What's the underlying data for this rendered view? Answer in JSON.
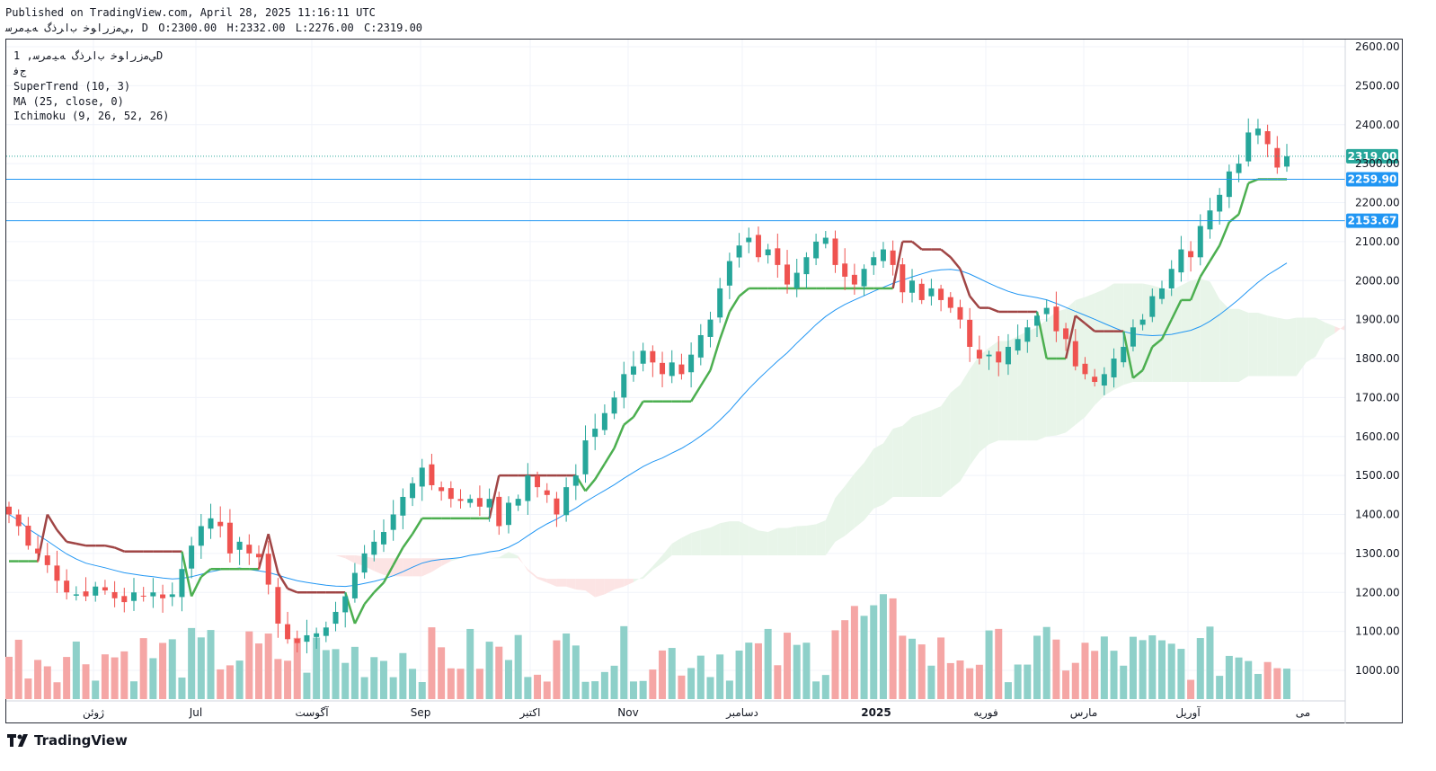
{
  "header": {
    "published": "Published on TradingView.com, April 28, 2025 11:16:11 UTC",
    "symbol": "ﻲﻣﺯﺭﺍﻮﺧ ﺏﺍﺮﺫگ ﻪﯿﻣﺮﺳ, D",
    "open": "O:2300.00",
    "high": "H:2332.00",
    "low": "L:2276.00",
    "close": "C:2319.00"
  },
  "legend": {
    "symbol_line": "ﻲﻣﺯﺭﺍﻮﺧ ﺏﺍﺮﺫگ ﻪﯿﻣﺮﺳ, 1D",
    "exchange": "ﺝﻓ",
    "supertrend": "SuperTrend (10, 3)",
    "ma": "MA (25, close, 0)",
    "ichimoku": "Ichimoku (9, 26, 52, 26)"
  },
  "footer": {
    "brand": "TradingView"
  },
  "colors": {
    "up": "#26a69a",
    "down": "#ef5350",
    "supertrend_up": "#4caf50",
    "supertrend_down": "#a04545",
    "ma": "#2196f3",
    "cloud_green": "#e8f5e9",
    "cloud_red": "#fce4e4",
    "hline": "#2196f3",
    "price_tag": "#26a69a"
  },
  "chart_data": {
    "type": "candlestick",
    "interval": "1D",
    "ylim": [
      900,
      2650
    ],
    "y_ticks": [
      "2600.00",
      "2500.00",
      "2400.00",
      "2300.00",
      "2200.00",
      "2100.00",
      "2000.00",
      "1900.00",
      "1800.00",
      "1700.00",
      "1600.00",
      "1500.00",
      "1400.00",
      "1300.00",
      "1200.00",
      "1100.00",
      "1000.00"
    ],
    "x_labels": [
      "ژوئن",
      "Jul",
      "آگوست",
      "Sep",
      "اکتبر",
      "Nov",
      "دسامبر",
      "2025",
      "فوریه",
      "مارس",
      "آوریل",
      "می"
    ],
    "last_price": {
      "value": 2319,
      "label": "2319.00"
    },
    "horizontal_lines": [
      {
        "value": 2259.9,
        "label": "2259.90"
      },
      {
        "value": 2153.67,
        "label": "2153.67"
      }
    ],
    "close_series": [
      1400,
      1370,
      1320,
      1300,
      1270,
      1230,
      1200,
      1195,
      1190,
      1215,
      1205,
      1185,
      1175,
      1200,
      1190,
      1200,
      1185,
      1195,
      1260,
      1320,
      1370,
      1390,
      1370,
      1300,
      1330,
      1300,
      1290,
      1220,
      1120,
      1080,
      1070,
      1090,
      1095,
      1110,
      1150,
      1190,
      1250,
      1300,
      1330,
      1355,
      1400,
      1445,
      1480,
      1520,
      1475,
      1460,
      1440,
      1435,
      1440,
      1420,
      1440,
      1370,
      1430,
      1440,
      1500,
      1470,
      1450,
      1400,
      1470,
      1500,
      1590,
      1620,
      1660,
      1700,
      1760,
      1780,
      1820,
      1790,
      1760,
      1790,
      1760,
      1810,
      1860,
      1900,
      1980,
      2050,
      2090,
      2110,
      2060,
      2080,
      2040,
      1990,
      2020,
      2060,
      2100,
      2110,
      2040,
      2010,
      1990,
      2030,
      2060,
      2080,
      2040,
      1970,
      2000,
      1950,
      1980,
      1950,
      1930,
      1900,
      1830,
      1800,
      1810,
      1790,
      1830,
      1850,
      1880,
      1910,
      1930,
      1870,
      1850,
      1780,
      1760,
      1740,
      1760,
      1800,
      1830,
      1880,
      1900,
      1960,
      1980,
      2030,
      2080,
      2060,
      2140,
      2180,
      2220,
      2280,
      2300,
      2380,
      2390,
      2350,
      2290,
      2319
    ],
    "volume_scale_max": 1200000
  }
}
